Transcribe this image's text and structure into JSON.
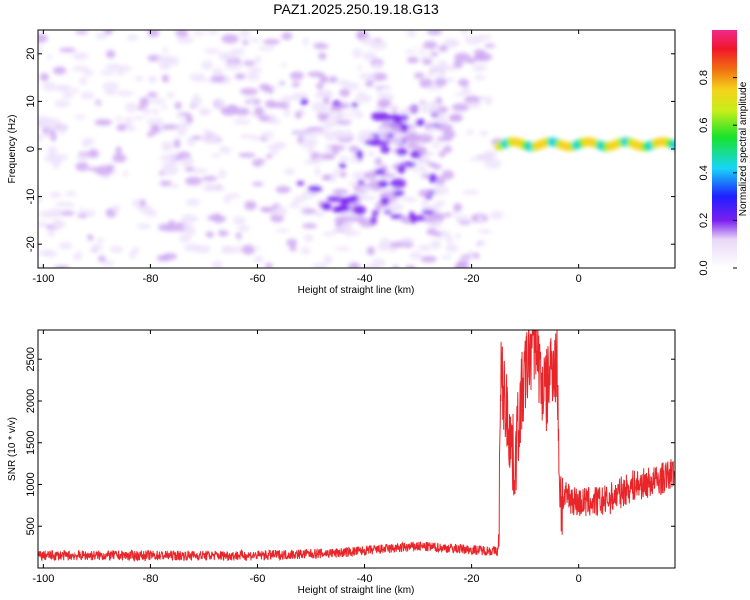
{
  "title": "PAZ1.2025.250.19.18.G13",
  "colors": {
    "signal": "#e8262a",
    "frame": "#000000"
  },
  "chart_data": [
    {
      "type": "heatmap",
      "name": "spectrogram",
      "xlabel": "Height of straight line (km)",
      "ylabel": "Frequency (Hz)",
      "xlim": [
        -101,
        18
      ],
      "ylim": [
        -25,
        25
      ],
      "x_ticks": [
        "-100",
        "-80",
        "-60",
        "-40",
        "-20",
        "0"
      ],
      "x_tick_values": [
        -100,
        -80,
        -60,
        -40,
        -20,
        0
      ],
      "y_ticks": [
        "20",
        "10",
        "0",
        "-10",
        "-20"
      ],
      "y_tick_values": [
        20,
        10,
        0,
        -10,
        -20
      ],
      "colorbar": {
        "label": "Normalized spectral amplitude",
        "range": [
          0,
          1
        ],
        "ticks": [
          "0.0",
          "0.2",
          "0.4",
          "0.6",
          "0.8"
        ],
        "tick_values": [
          0.0,
          0.2,
          0.4,
          0.6,
          0.8
        ]
      },
      "features": [
        {
          "label": "noise",
          "x_range": [
            -101,
            -15
          ],
          "freq_range": [
            -25,
            25
          ],
          "amplitude": 0.1
        },
        {
          "label": "ionospheric-spread",
          "x_range": [
            -52,
            -25
          ],
          "freq_range": [
            -15,
            10
          ],
          "amplitude": 0.18
        },
        {
          "label": "signal-ridge",
          "x_range": [
            -15,
            18
          ],
          "freq": 1,
          "amplitude": 0.8
        }
      ]
    },
    {
      "type": "line",
      "name": "snr",
      "xlabel": "Height of straight line (km)",
      "ylabel": "SNR (10 * v/v)",
      "xlim": [
        -101,
        18
      ],
      "ylim": [
        0,
        2850
      ],
      "x_ticks": [
        "-100",
        "-80",
        "-60",
        "-40",
        "-20",
        "0"
      ],
      "x_tick_values": [
        -100,
        -80,
        -60,
        -40,
        -20,
        0
      ],
      "y_ticks": [
        "2500",
        "2000",
        "1500",
        "1000",
        "500"
      ],
      "y_tick_values": [
        2500,
        2000,
        1500,
        1000,
        500
      ],
      "series": [
        {
          "name": "SNR",
          "x": [
            -101,
            -60,
            -45,
            -30,
            -20,
            -15,
            -14.5,
            -13,
            -12,
            -11,
            -10,
            -9,
            -8,
            -7,
            -6,
            -5,
            -4,
            -3.5,
            -3,
            -2,
            0,
            5,
            10,
            15,
            18
          ],
          "values": [
            150,
            150,
            180,
            260,
            220,
            200,
            2300,
            1700,
            1200,
            1900,
            2300,
            2600,
            2800,
            2200,
            2100,
            2500,
            2400,
            900,
            800,
            860,
            780,
            800,
            980,
            1050,
            1150
          ]
        }
      ]
    }
  ]
}
